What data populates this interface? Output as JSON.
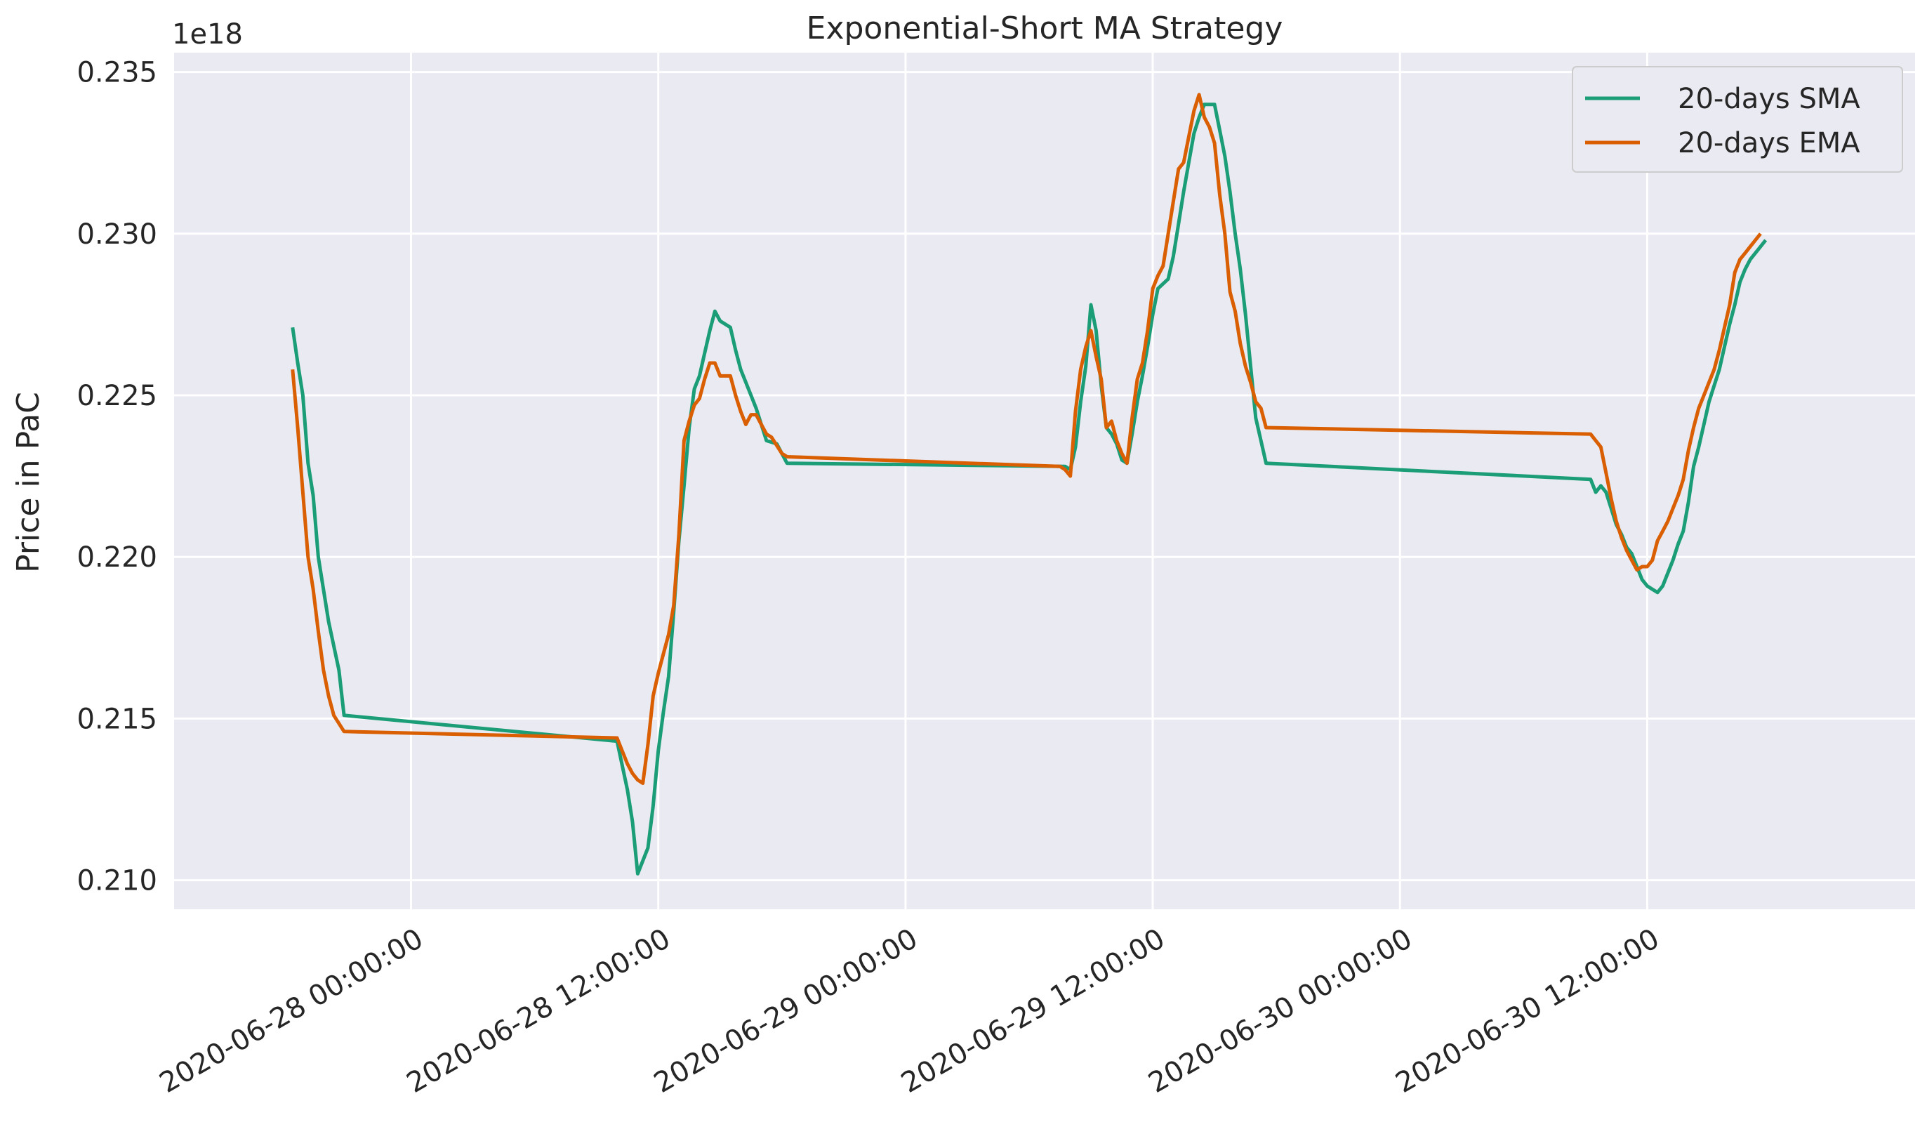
{
  "chart_data": {
    "type": "line",
    "title": "Exponential-Short MA Strategy",
    "xlabel": "",
    "ylabel": "Price in PaC",
    "y_offset_label": "1e18",
    "y_scale": 1e+18,
    "xlim": [
      "2020-06-27 12:30:00",
      "2020-07-01 01:00:00"
    ],
    "ylim": [
      0.2091,
      0.2356
    ],
    "x_ticks": [
      "2020-06-28 00:00:00",
      "2020-06-28 12:00:00",
      "2020-06-29 00:00:00",
      "2020-06-29 12:00:00",
      "2020-06-30 00:00:00",
      "2020-06-30 12:00:00"
    ],
    "y_ticks": [
      "0.210",
      "0.215",
      "0.220",
      "0.225",
      "0.230",
      "0.235"
    ],
    "grid": true,
    "legend_position": "top-right",
    "series": [
      {
        "name": "20-days SMA",
        "color": "#1b9e77",
        "points": [
          [
            "2020-06-27 18:15",
            0.2271
          ],
          [
            "2020-06-27 18:30",
            0.226
          ],
          [
            "2020-06-27 18:45",
            0.225
          ],
          [
            "2020-06-27 19:00",
            0.2229
          ],
          [
            "2020-06-27 19:15",
            0.2219
          ],
          [
            "2020-06-27 19:30",
            0.22
          ],
          [
            "2020-06-27 20:00",
            0.218
          ],
          [
            "2020-06-27 20:30",
            0.2165
          ],
          [
            "2020-06-27 20:45",
            0.2151
          ],
          [
            "2020-06-28 10:00",
            0.2143
          ],
          [
            "2020-06-28 10:30",
            0.2128
          ],
          [
            "2020-06-28 10:45",
            0.2118
          ],
          [
            "2020-06-28 11:00",
            0.2102
          ],
          [
            "2020-06-28 11:15",
            0.2106
          ],
          [
            "2020-06-28 11:30",
            0.211
          ],
          [
            "2020-06-28 11:45",
            0.2123
          ],
          [
            "2020-06-28 12:00",
            0.214
          ],
          [
            "2020-06-28 12:15",
            0.2152
          ],
          [
            "2020-06-28 12:30",
            0.2163
          ],
          [
            "2020-06-28 12:45",
            0.2183
          ],
          [
            "2020-06-28 13:00",
            0.2205
          ],
          [
            "2020-06-28 13:15",
            0.2222
          ],
          [
            "2020-06-28 13:30",
            0.224
          ],
          [
            "2020-06-28 13:45",
            0.2252
          ],
          [
            "2020-06-28 14:00",
            0.2256
          ],
          [
            "2020-06-28 14:15",
            0.2263
          ],
          [
            "2020-06-28 14:30",
            0.227
          ],
          [
            "2020-06-28 14:45",
            0.2276
          ],
          [
            "2020-06-28 15:00",
            0.2273
          ],
          [
            "2020-06-28 15:30",
            0.2271
          ],
          [
            "2020-06-28 15:45",
            0.2264
          ],
          [
            "2020-06-28 16:00",
            0.2258
          ],
          [
            "2020-06-28 16:30",
            0.225
          ],
          [
            "2020-06-28 16:45",
            0.2246
          ],
          [
            "2020-06-28 17:15",
            0.2236
          ],
          [
            "2020-06-28 17:45",
            0.2235
          ],
          [
            "2020-06-28 18:00",
            0.2232
          ],
          [
            "2020-06-28 18:15",
            0.2229
          ],
          [
            "2020-06-29 07:45",
            0.2228
          ],
          [
            "2020-06-29 08:00",
            0.2227
          ],
          [
            "2020-06-29 08:15",
            0.2234
          ],
          [
            "2020-06-29 08:30",
            0.2248
          ],
          [
            "2020-06-29 08:45",
            0.2259
          ],
          [
            "2020-06-29 09:00",
            0.2278
          ],
          [
            "2020-06-29 09:15",
            0.227
          ],
          [
            "2020-06-29 09:30",
            0.2253
          ],
          [
            "2020-06-29 09:45",
            0.224
          ],
          [
            "2020-06-29 10:00",
            0.2238
          ],
          [
            "2020-06-29 10:15",
            0.2235
          ],
          [
            "2020-06-29 10:30",
            0.223
          ],
          [
            "2020-06-29 10:45",
            0.2229
          ],
          [
            "2020-06-29 11:00",
            0.2238
          ],
          [
            "2020-06-29 11:15",
            0.2248
          ],
          [
            "2020-06-29 11:30",
            0.2256
          ],
          [
            "2020-06-29 11:45",
            0.2265
          ],
          [
            "2020-06-29 12:00",
            0.2275
          ],
          [
            "2020-06-29 12:15",
            0.2283
          ],
          [
            "2020-06-29 12:45",
            0.2286
          ],
          [
            "2020-06-29 13:00",
            0.2293
          ],
          [
            "2020-06-29 13:15",
            0.2303
          ],
          [
            "2020-06-29 13:30",
            0.2313
          ],
          [
            "2020-06-29 13:45",
            0.2322
          ],
          [
            "2020-06-29 14:00",
            0.2331
          ],
          [
            "2020-06-29 14:15",
            0.2336
          ],
          [
            "2020-06-29 14:30",
            0.234
          ],
          [
            "2020-06-29 15:00",
            0.234
          ],
          [
            "2020-06-29 15:15",
            0.2332
          ],
          [
            "2020-06-29 15:30",
            0.2324
          ],
          [
            "2020-06-29 15:45",
            0.2313
          ],
          [
            "2020-06-29 16:00",
            0.23
          ],
          [
            "2020-06-29 16:15",
            0.2289
          ],
          [
            "2020-06-29 16:30",
            0.2275
          ],
          [
            "2020-06-29 16:45",
            0.2259
          ],
          [
            "2020-06-29 17:00",
            0.2243
          ],
          [
            "2020-06-29 17:15",
            0.2236
          ],
          [
            "2020-06-29 17:30",
            0.2229
          ],
          [
            "2020-06-30 09:15",
            0.2224
          ],
          [
            "2020-06-30 09:30",
            0.222
          ],
          [
            "2020-06-30 09:45",
            0.2222
          ],
          [
            "2020-06-30 10:00",
            0.222
          ],
          [
            "2020-06-30 10:15",
            0.2215
          ],
          [
            "2020-06-30 10:30",
            0.221
          ],
          [
            "2020-06-30 10:45",
            0.2207
          ],
          [
            "2020-06-30 11:00",
            0.2203
          ],
          [
            "2020-06-30 11:15",
            0.2201
          ],
          [
            "2020-06-30 11:30",
            0.2197
          ],
          [
            "2020-06-30 11:45",
            0.2193
          ],
          [
            "2020-06-30 12:00",
            0.2191
          ],
          [
            "2020-06-30 12:15",
            0.219
          ],
          [
            "2020-06-30 12:30",
            0.2189
          ],
          [
            "2020-06-30 12:45",
            0.2191
          ],
          [
            "2020-06-30 13:00",
            0.2195
          ],
          [
            "2020-06-30 13:15",
            0.2199
          ],
          [
            "2020-06-30 13:30",
            0.2204
          ],
          [
            "2020-06-30 13:45",
            0.2208
          ],
          [
            "2020-06-30 14:00",
            0.2217
          ],
          [
            "2020-06-30 14:15",
            0.2228
          ],
          [
            "2020-06-30 14:30",
            0.2234
          ],
          [
            "2020-06-30 14:45",
            0.2241
          ],
          [
            "2020-06-30 15:00",
            0.2248
          ],
          [
            "2020-06-30 15:15",
            0.2253
          ],
          [
            "2020-06-30 15:30",
            0.2258
          ],
          [
            "2020-06-30 15:45",
            0.2265
          ],
          [
            "2020-06-30 16:00",
            0.2272
          ],
          [
            "2020-06-30 16:15",
            0.2278
          ],
          [
            "2020-06-30 16:30",
            0.2285
          ],
          [
            "2020-06-30 16:45",
            0.2289
          ],
          [
            "2020-06-30 17:00",
            0.2292
          ],
          [
            "2020-06-30 17:15",
            0.2294
          ],
          [
            "2020-06-30 17:30",
            0.2296
          ],
          [
            "2020-06-30 17:45",
            0.2298
          ]
        ]
      },
      {
        "name": "20-days EMA",
        "color": "#d95f02",
        "points": [
          [
            "2020-06-27 18:15",
            0.2258
          ],
          [
            "2020-06-27 18:30",
            0.224
          ],
          [
            "2020-06-27 18:45",
            0.222
          ],
          [
            "2020-06-27 19:00",
            0.22
          ],
          [
            "2020-06-27 19:15",
            0.219
          ],
          [
            "2020-06-27 19:30",
            0.2177
          ],
          [
            "2020-06-27 19:45",
            0.2165
          ],
          [
            "2020-06-27 20:00",
            0.2157
          ],
          [
            "2020-06-27 20:15",
            0.2151
          ],
          [
            "2020-06-27 20:45",
            0.2146
          ],
          [
            "2020-06-28 10:00",
            0.2144
          ],
          [
            "2020-06-28 10:15",
            0.214
          ],
          [
            "2020-06-28 10:30",
            0.2136
          ],
          [
            "2020-06-28 10:45",
            0.2133
          ],
          [
            "2020-06-28 11:00",
            0.2131
          ],
          [
            "2020-06-28 11:15",
            0.213
          ],
          [
            "2020-06-28 11:30",
            0.2142
          ],
          [
            "2020-06-28 11:45",
            0.2157
          ],
          [
            "2020-06-28 12:00",
            0.2164
          ],
          [
            "2020-06-28 12:15",
            0.217
          ],
          [
            "2020-06-28 12:30",
            0.2176
          ],
          [
            "2020-06-28 12:45",
            0.2185
          ],
          [
            "2020-06-28 13:00",
            0.2207
          ],
          [
            "2020-06-28 13:15",
            0.2236
          ],
          [
            "2020-06-28 13:30",
            0.2242
          ],
          [
            "2020-06-28 13:45",
            0.2247
          ],
          [
            "2020-06-28 14:00",
            0.2249
          ],
          [
            "2020-06-28 14:15",
            0.2255
          ],
          [
            "2020-06-28 14:30",
            0.226
          ],
          [
            "2020-06-28 14:45",
            0.226
          ],
          [
            "2020-06-28 15:00",
            0.2256
          ],
          [
            "2020-06-28 15:30",
            0.2256
          ],
          [
            "2020-06-28 15:45",
            0.225
          ],
          [
            "2020-06-28 16:00",
            0.2245
          ],
          [
            "2020-06-28 16:15",
            0.2241
          ],
          [
            "2020-06-28 16:30",
            0.2244
          ],
          [
            "2020-06-28 16:45",
            0.2244
          ],
          [
            "2020-06-28 17:00",
            0.2241
          ],
          [
            "2020-06-28 17:15",
            0.2238
          ],
          [
            "2020-06-28 17:30",
            0.2237
          ],
          [
            "2020-06-28 18:00",
            0.2232
          ],
          [
            "2020-06-28 18:15",
            0.2231
          ],
          [
            "2020-06-29 07:30",
            0.2228
          ],
          [
            "2020-06-29 07:45",
            0.2227
          ],
          [
            "2020-06-29 08:00",
            0.2225
          ],
          [
            "2020-06-29 08:15",
            0.2245
          ],
          [
            "2020-06-29 08:30",
            0.2258
          ],
          [
            "2020-06-29 08:45",
            0.2265
          ],
          [
            "2020-06-29 09:00",
            0.227
          ],
          [
            "2020-06-29 09:15",
            0.2262
          ],
          [
            "2020-06-29 09:30",
            0.2255
          ],
          [
            "2020-06-29 09:45",
            0.224
          ],
          [
            "2020-06-29 10:00",
            0.2242
          ],
          [
            "2020-06-29 10:15",
            0.2236
          ],
          [
            "2020-06-29 10:30",
            0.2232
          ],
          [
            "2020-06-29 10:45",
            0.2229
          ],
          [
            "2020-06-29 11:00",
            0.2243
          ],
          [
            "2020-06-29 11:15",
            0.2255
          ],
          [
            "2020-06-29 11:30",
            0.226
          ],
          [
            "2020-06-29 11:45",
            0.227
          ],
          [
            "2020-06-29 12:00",
            0.2283
          ],
          [
            "2020-06-29 12:15",
            0.2287
          ],
          [
            "2020-06-29 12:30",
            0.229
          ],
          [
            "2020-06-29 12:45",
            0.23
          ],
          [
            "2020-06-29 13:00",
            0.231
          ],
          [
            "2020-06-29 13:15",
            0.232
          ],
          [
            "2020-06-29 13:30",
            0.2322
          ],
          [
            "2020-06-29 13:45",
            0.233
          ],
          [
            "2020-06-29 14:00",
            0.2338
          ],
          [
            "2020-06-29 14:15",
            0.2343
          ],
          [
            "2020-06-29 14:30",
            0.2336
          ],
          [
            "2020-06-29 14:45",
            0.2333
          ],
          [
            "2020-06-29 15:00",
            0.2328
          ],
          [
            "2020-06-29 15:15",
            0.2312
          ],
          [
            "2020-06-29 15:30",
            0.23
          ],
          [
            "2020-06-29 15:45",
            0.2282
          ],
          [
            "2020-06-29 16:00",
            0.2276
          ],
          [
            "2020-06-29 16:15",
            0.2266
          ],
          [
            "2020-06-29 16:30",
            0.2259
          ],
          [
            "2020-06-29 16:45",
            0.2254
          ],
          [
            "2020-06-29 17:00",
            0.2248
          ],
          [
            "2020-06-29 17:15",
            0.2246
          ],
          [
            "2020-06-29 17:30",
            0.224
          ],
          [
            "2020-06-30 09:15",
            0.2238
          ],
          [
            "2020-06-30 09:30",
            0.2236
          ],
          [
            "2020-06-30 09:45",
            0.2234
          ],
          [
            "2020-06-30 10:00",
            0.2226
          ],
          [
            "2020-06-30 10:15",
            0.2218
          ],
          [
            "2020-06-30 10:30",
            0.2211
          ],
          [
            "2020-06-30 10:45",
            0.2206
          ],
          [
            "2020-06-30 11:00",
            0.2202
          ],
          [
            "2020-06-30 11:15",
            0.2199
          ],
          [
            "2020-06-30 11:30",
            0.2196
          ],
          [
            "2020-06-30 11:45",
            0.2197
          ],
          [
            "2020-06-30 12:00",
            0.2197
          ],
          [
            "2020-06-30 12:15",
            0.2199
          ],
          [
            "2020-06-30 12:30",
            0.2205
          ],
          [
            "2020-06-30 12:45",
            0.2208
          ],
          [
            "2020-06-30 13:00",
            0.2211
          ],
          [
            "2020-06-30 13:15",
            0.2215
          ],
          [
            "2020-06-30 13:30",
            0.2219
          ],
          [
            "2020-06-30 13:45",
            0.2224
          ],
          [
            "2020-06-30 14:00",
            0.2233
          ],
          [
            "2020-06-30 14:15",
            0.224
          ],
          [
            "2020-06-30 14:30",
            0.2246
          ],
          [
            "2020-06-30 14:45",
            0.225
          ],
          [
            "2020-06-30 15:00",
            0.2254
          ],
          [
            "2020-06-30 15:15",
            0.2258
          ],
          [
            "2020-06-30 15:30",
            0.2264
          ],
          [
            "2020-06-30 15:45",
            0.2271
          ],
          [
            "2020-06-30 16:00",
            0.2278
          ],
          [
            "2020-06-30 16:15",
            0.2288
          ],
          [
            "2020-06-30 16:30",
            0.2292
          ],
          [
            "2020-06-30 16:45",
            0.2294
          ],
          [
            "2020-06-30 17:00",
            0.2296
          ],
          [
            "2020-06-30 17:15",
            0.2298
          ],
          [
            "2020-06-30 17:30",
            0.23
          ]
        ]
      }
    ]
  }
}
